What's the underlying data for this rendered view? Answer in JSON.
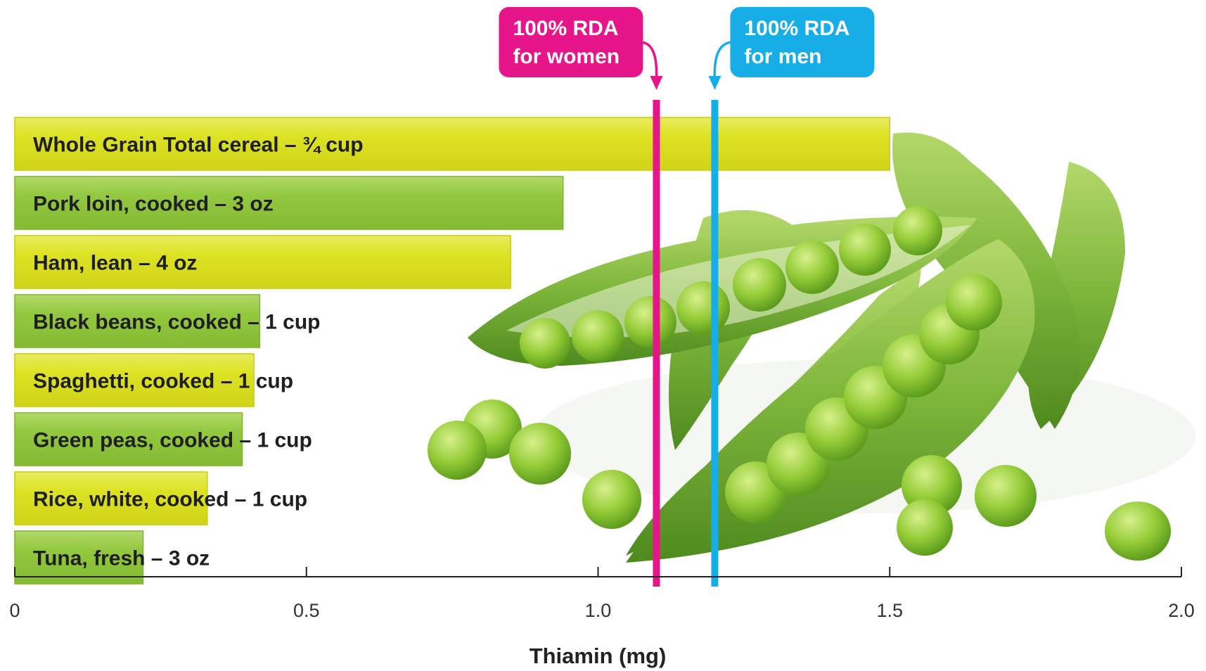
{
  "chart_data": {
    "type": "bar",
    "orientation": "horizontal",
    "categories": [
      "Whole Grain Total cereal – ¾ cup",
      "Pork loin, cooked – 3 oz",
      "Ham, lean – 4 oz",
      "Black beans, cooked – 1 cup",
      "Spaghetti, cooked – 1 cup",
      "Green peas, cooked – 1 cup",
      "Rice, white, cooked – 1 cup",
      "Tuna, fresh – 3 oz"
    ],
    "values": [
      1.5,
      0.94,
      0.85,
      0.42,
      0.41,
      0.39,
      0.33,
      0.22
    ],
    "xlabel": "Thiamin (mg)",
    "xlim": [
      0,
      2.0
    ],
    "xticks": [
      0,
      0.5,
      1.0,
      1.5,
      2.0
    ],
    "xtick_labels": [
      "0",
      "0.5",
      "1.0",
      "1.5",
      "2.0"
    ],
    "grid": false,
    "bar_colors": [
      "#dde223",
      "#93c83f"
    ],
    "reference_lines": [
      {
        "label_line1": "100% RDA",
        "label_line2": "for women",
        "value": 1.1,
        "color": "#e6168a"
      },
      {
        "label_line1": "100% RDA",
        "label_line2": "for men",
        "value": 1.2,
        "color": "#17aee8"
      }
    ],
    "background_image": "pea-pods-photo"
  }
}
